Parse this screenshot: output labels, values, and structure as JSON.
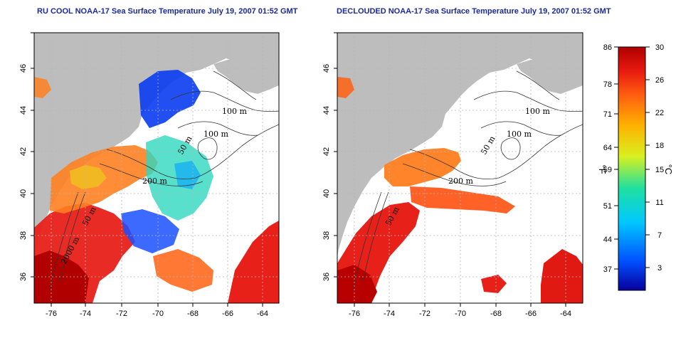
{
  "titles": {
    "left": "RU COOL NOAA-17 Sea Surface Temperature July 19, 2007 01:52 GMT",
    "right": "DECLOUDED NOAA-17 Sea Surface Temperature July 19, 2007 01:52 GMT"
  },
  "axes": {
    "lon_ticks": [
      "-76",
      "-74",
      "-72",
      "-70",
      "-68",
      "-66",
      "-64"
    ],
    "lat_ticks": [
      "36",
      "38",
      "40",
      "42",
      "44",
      "46"
    ]
  },
  "contour_labels": {
    "left": [
      "100 m",
      "100 m",
      "50 m",
      "200 m",
      "50 m",
      "2000 m"
    ],
    "right": [
      "100 m",
      "100 m",
      "50 m",
      "200 m",
      "50 m"
    ]
  },
  "colorbar": {
    "fahrenheit_ticks": [
      "86",
      "78",
      "71",
      "64",
      "59",
      "51",
      "44",
      "37"
    ],
    "celsius_ticks": [
      "30",
      "26",
      "22",
      "18",
      "15",
      "11",
      "7",
      "3"
    ],
    "fahrenheit_unit": "°F",
    "celsius_unit": "°C",
    "range_c": [
      0,
      30
    ],
    "colors": [
      "#08009c",
      "#0050ff",
      "#00c8ff",
      "#20e0a0",
      "#d8f020",
      "#ffb000",
      "#ff6010",
      "#e81a10",
      "#b00000"
    ]
  },
  "map_colors": {
    "land": "#bdbdbd",
    "ocean_bg": "#ffffff",
    "grid": "#b5b5b5",
    "contour": "#333333"
  }
}
